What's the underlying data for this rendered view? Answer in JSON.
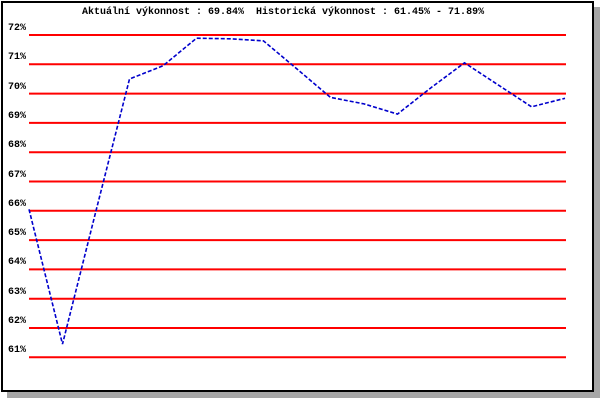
{
  "chart_data": {
    "type": "line",
    "title": "Aktuální výkonnost : 69.84%  Historická výkonnost : 61.45% - 71.89%",
    "current_performance": "69.84%",
    "historical_min": "61.45%",
    "historical_max": "71.89%",
    "y_tick_labels": [
      "72%",
      "71%",
      "70%",
      "69%",
      "68%",
      "67%",
      "66%",
      "65%",
      "64%",
      "63%",
      "62%",
      "61%"
    ],
    "y_tick_values": [
      72,
      71,
      70,
      69,
      68,
      67,
      66,
      65,
      64,
      63,
      62,
      61
    ],
    "ylim": [
      61,
      72
    ],
    "xlabel": "",
    "ylabel": "",
    "grid": "horizontal-only",
    "legend_position": "none",
    "grid_color": "#ff0000",
    "line_color": "#0000cc",
    "x": [
      1,
      2,
      3,
      4,
      5,
      6,
      7,
      8,
      9,
      10,
      11,
      12,
      13,
      14,
      15,
      16,
      17
    ],
    "series": [
      {
        "name": "vykonnost",
        "values": [
          66.05,
          61.45,
          66.0,
          70.5,
          70.95,
          71.89,
          71.87,
          71.8,
          70.84,
          69.87,
          69.65,
          69.3,
          70.2,
          71.05,
          70.3,
          69.55,
          69.84
        ]
      }
    ]
  }
}
